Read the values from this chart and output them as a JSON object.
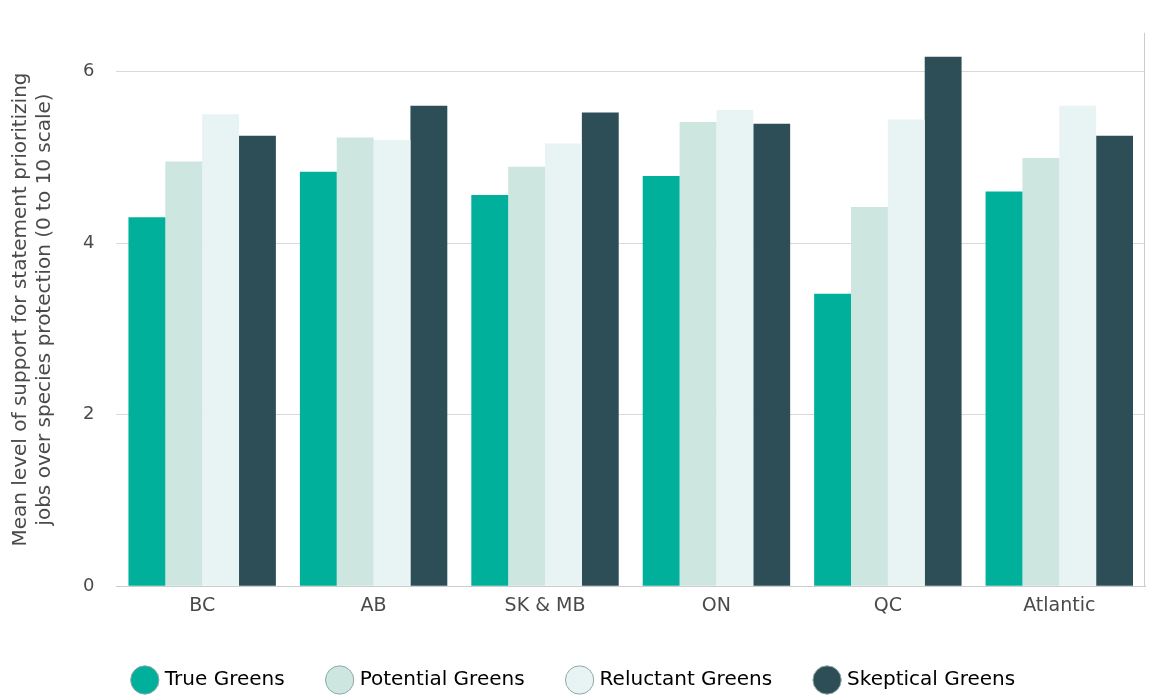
{
  "chart_data": {
    "type": "bar",
    "ylabel": "Mean level of support for statement prioritizing jobs over species protection (0 to 10 scale)",
    "categories": [
      "BC",
      "AB",
      "SK & MB",
      "ON",
      "QC",
      "Atlantic"
    ],
    "series": [
      {
        "name": "True Greens",
        "color": "#00b09b",
        "values": [
          4.3,
          4.83,
          4.56,
          4.78,
          3.41,
          4.6
        ]
      },
      {
        "name": "Potential Greens",
        "color": "#cde6e0",
        "values": [
          4.95,
          5.23,
          4.89,
          5.41,
          4.42,
          4.99
        ]
      },
      {
        "name": "Reluctant Greens",
        "color": "#e8f4f4",
        "values": [
          5.5,
          5.2,
          5.16,
          5.55,
          5.44,
          5.6
        ]
      },
      {
        "name": "Skeptical Greens",
        "color": "#2d4d57",
        "values": [
          5.25,
          5.6,
          5.52,
          5.39,
          6.17,
          5.25
        ]
      }
    ],
    "ylim": [
      0,
      6.45
    ],
    "yticks": [
      0,
      2,
      4,
      6
    ],
    "grid": "y",
    "legend": "bottom"
  }
}
